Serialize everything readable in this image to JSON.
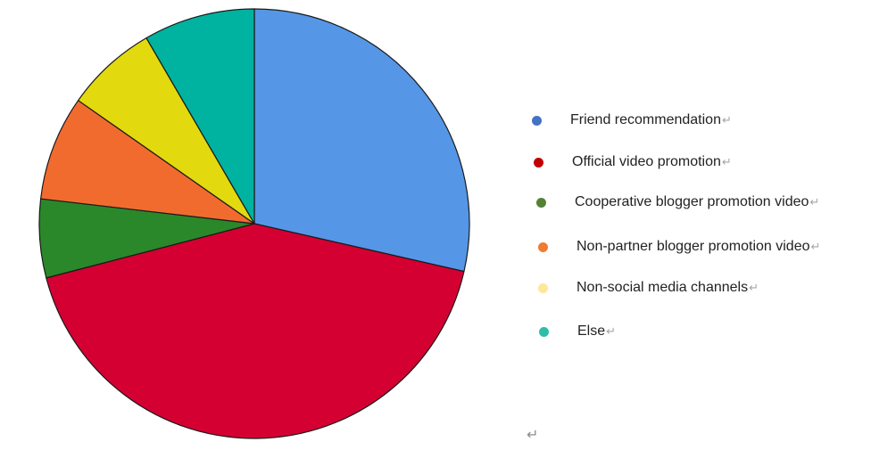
{
  "chart_data": {
    "type": "pie",
    "title": "",
    "slices": [
      {
        "label": "Friend recommendation",
        "value": 29.0,
        "color": "#5596E6",
        "legend_color": "#4472C4"
      },
      {
        "label": "Official video promotion",
        "value": 43.0,
        "color": "#D50032",
        "legend_color": "#C00000"
      },
      {
        "label": "Cooperative blogger promotion video",
        "value": 6.0,
        "color": "#2A882A",
        "legend_color": "#548235"
      },
      {
        "label": "Non-partner blogger promotion video",
        "value": 8.0,
        "color": "#F26B2E",
        "legend_color": "#ED7D31"
      },
      {
        "label": "Non-social media channels",
        "value": 7.0,
        "color": "#E3D90F",
        "legend_color": "#FFE699"
      },
      {
        "label": "Else",
        "value": 8.5,
        "color": "#00B2A0",
        "legend_color": "#2EBDA8"
      }
    ],
    "legend_position": "right",
    "start_angle": "12 o'clock",
    "direction": "clockwise"
  },
  "marks": {
    "paragraph": "↵"
  }
}
